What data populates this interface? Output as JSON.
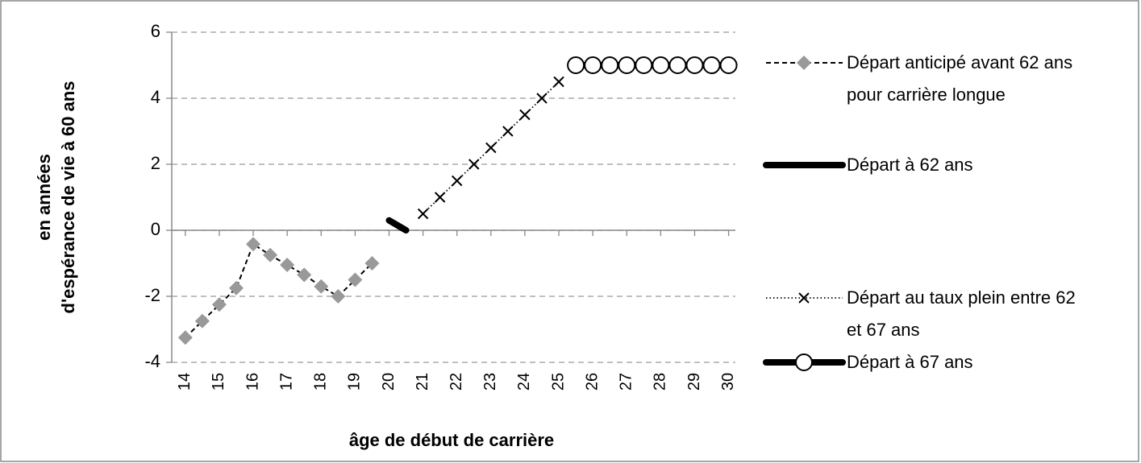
{
  "chart_data": {
    "type": "line",
    "y_label": [
      "en années",
      "d'espérance de vie à 60 ans"
    ],
    "x_label": "âge de début de carrière",
    "xlim": [
      13.6,
      30.2
    ],
    "xticks": [
      14,
      15,
      16,
      17,
      18,
      19,
      20,
      21,
      22,
      23,
      24,
      25,
      26,
      27,
      28,
      29,
      30
    ],
    "ylim": [
      -4,
      6
    ],
    "yticks": [
      -4,
      -2,
      0,
      2,
      4,
      6
    ],
    "grid": true,
    "legend": "right",
    "series": [
      {
        "name": "Départ anticipé avant 62 ans pour carrière longue",
        "color": "#999999",
        "line": "dashed",
        "marker": "diamond",
        "x": [
          14,
          14.5,
          15,
          15.5,
          16,
          16.5,
          17,
          17.5,
          18,
          18.5,
          19,
          19.5
        ],
        "values": [
          -3.25,
          -2.75,
          -2.25,
          -1.75,
          -0.42,
          -0.75,
          -1.05,
          -1.35,
          -1.7,
          -2.0,
          -1.5,
          -1.0
        ]
      },
      {
        "name": "Départ à 62 ans",
        "color": "#000000",
        "line": "thick",
        "marker": "none",
        "x": [
          20,
          20.5
        ],
        "values": [
          0.3,
          0
        ]
      },
      {
        "name": "Départ au taux plein entre 62 et 67 ans",
        "color": "#000000",
        "line": "dotted",
        "marker": "x",
        "x": [
          21,
          21.5,
          22,
          22.5,
          23,
          23.5,
          24,
          24.5,
          25
        ],
        "values": [
          0.5,
          1,
          1.5,
          2,
          2.5,
          3,
          3.5,
          4,
          4.5
        ]
      },
      {
        "name": "Départ à 67 ans",
        "color": "#000000",
        "line": "thick",
        "marker": "circle",
        "x": [
          25.5,
          26,
          26.5,
          27,
          27.5,
          28,
          28.5,
          29,
          29.5,
          30
        ],
        "values": [
          5,
          5,
          5,
          5,
          5,
          5,
          5,
          5,
          5,
          5
        ]
      }
    ]
  }
}
